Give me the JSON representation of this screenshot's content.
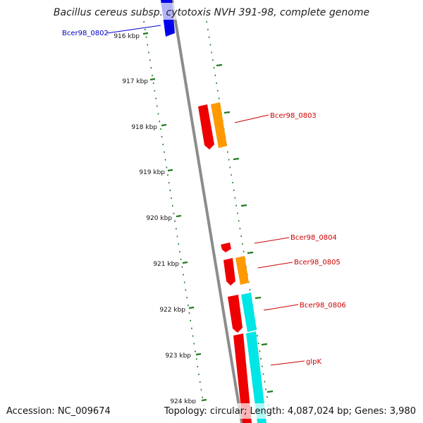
{
  "title": "Bacillus cereus subsp. cytotoxis NVH 391-98, complete genome",
  "footer": {
    "accession": "Accession: NC_009674",
    "summary": "Topology: circular; Length: 4,087,024 bp; Genes: 3,980"
  },
  "ticks": [
    "916 kbp",
    "917 kbp",
    "918 kbp",
    "919 kbp",
    "920 kbp",
    "921 kbp",
    "922 kbp",
    "923 kbp",
    "924 kbp"
  ],
  "gene_labels": [
    {
      "text": "Bcer98_0802",
      "color": "#0000cc"
    },
    {
      "text": "Bcer98_0803",
      "color": "#cc0000"
    },
    {
      "text": "Bcer98_0804",
      "color": "#cc0000"
    },
    {
      "text": "Bcer98_0805",
      "color": "#cc0000"
    },
    {
      "text": "Bcer98_0806",
      "color": "#cc0000"
    },
    {
      "text": "glpK",
      "color": "#cc0000"
    }
  ],
  "colors": {
    "backbone": "#8c8c8c",
    "tick": "#1f7a1f",
    "forward_gene": "#0000ee",
    "reverse_gene": "#ee0000",
    "orange_feature": "#ff9900",
    "cyan_feature": "#00e5e5"
  }
}
